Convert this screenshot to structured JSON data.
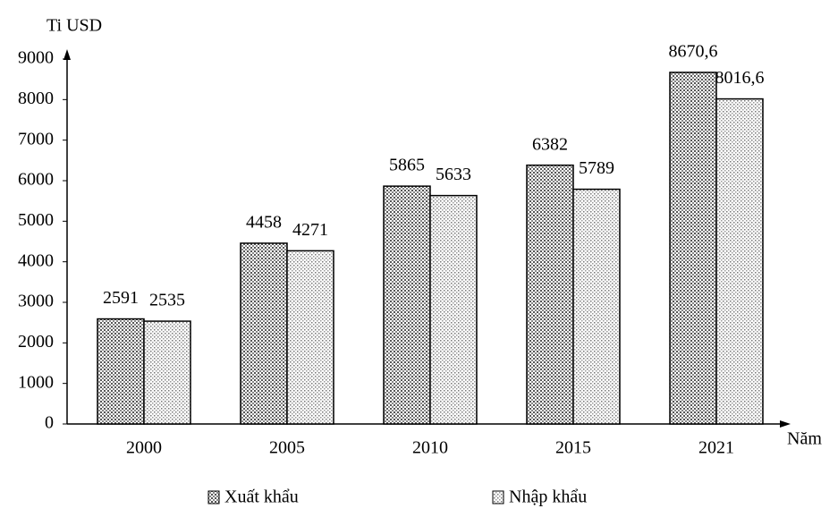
{
  "chart_data": {
    "type": "bar",
    "y_label": "Ti USD",
    "x_label": "Năm",
    "categories": [
      "2000",
      "2005",
      "2010",
      "2015",
      "2021"
    ],
    "series": [
      {
        "name": "Xuất khẩu",
        "color": "#bdbdbd",
        "values": [
          2591,
          4458,
          5865,
          6382,
          8670.6
        ],
        "value_labels": [
          "2591",
          "4458",
          "5865",
          "6382",
          "8670,6"
        ]
      },
      {
        "name": "Nhập khẩu",
        "color": "#e6e6e6",
        "values": [
          2535,
          4271,
          5633,
          5789,
          8016.6
        ],
        "value_labels": [
          "2535",
          "4271",
          "5633",
          "5789",
          "8016,6"
        ]
      }
    ],
    "ylim": [
      0,
      9000
    ],
    "yticks": [
      0,
      1000,
      2000,
      3000,
      4000,
      5000,
      6000,
      7000,
      8000,
      9000
    ],
    "grid": false
  }
}
